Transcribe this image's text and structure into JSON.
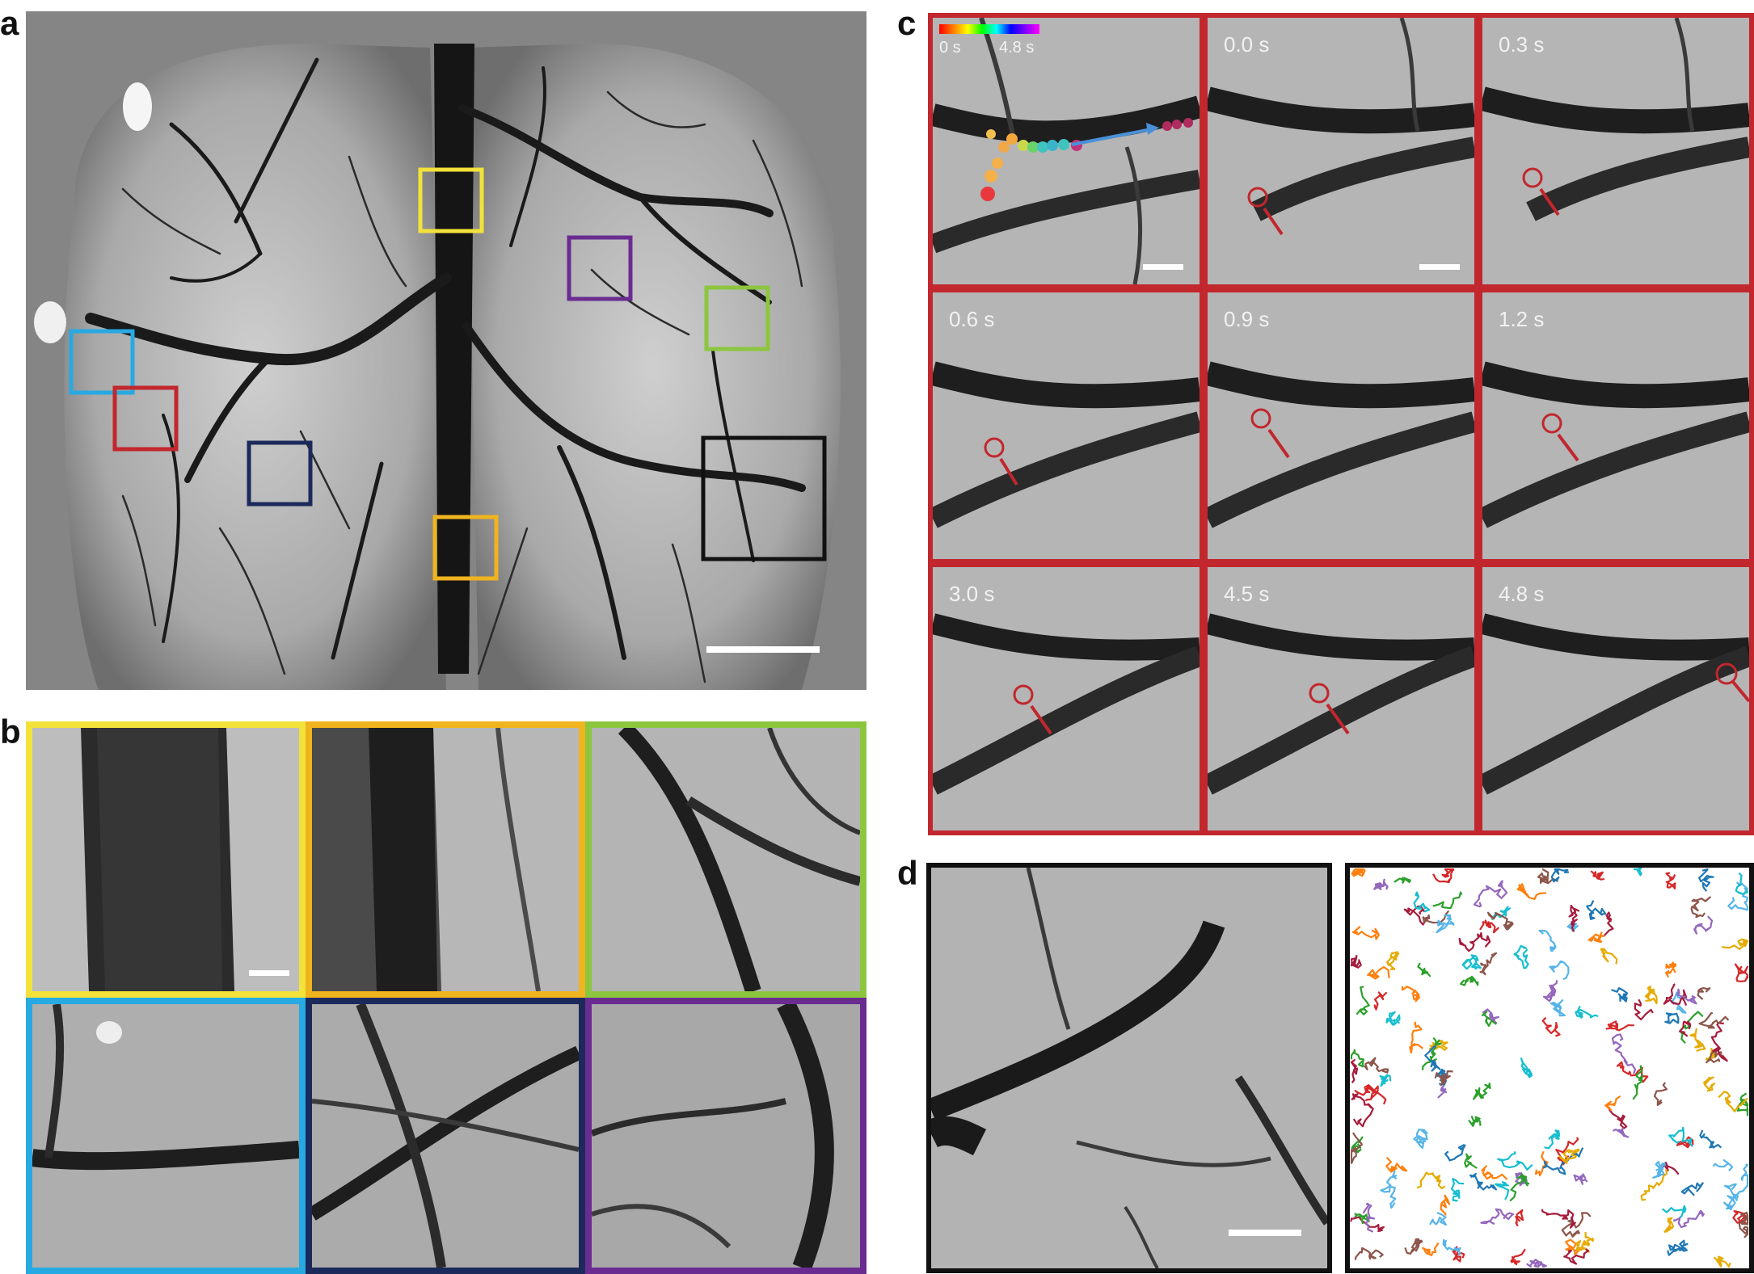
{
  "panel_labels": {
    "a": "a",
    "b": "b",
    "c": "c",
    "d": "d"
  },
  "colorbar": {
    "start_label": "0 s",
    "end_label": "4.8 s"
  },
  "time_labels": [
    "0.0 s",
    "0.3 s",
    "0.6 s",
    "0.9 s",
    "1.2 s",
    "3.0 s",
    "4.5 s",
    "4.8 s"
  ],
  "colors": {
    "roi_yellow": "#f2e23a",
    "roi_orange": "#f0b41e",
    "roi_green": "#8cc63f",
    "roi_cyan": "#27a9e1",
    "roi_navy": "#1b2a5a",
    "roi_purple": "#6a2c91",
    "roi_red": "#c1272d",
    "roi_black": "#111111",
    "arrow_red": "#c1272d",
    "trajectory_arrow": "#4a90d9",
    "track_palette": [
      "#1f77b4",
      "#ff7f0e",
      "#2ca02c",
      "#d62728",
      "#9467bd",
      "#8c564b",
      "#17becf",
      "#e6ab02",
      "#56b4e9",
      "#a61c3c"
    ]
  }
}
